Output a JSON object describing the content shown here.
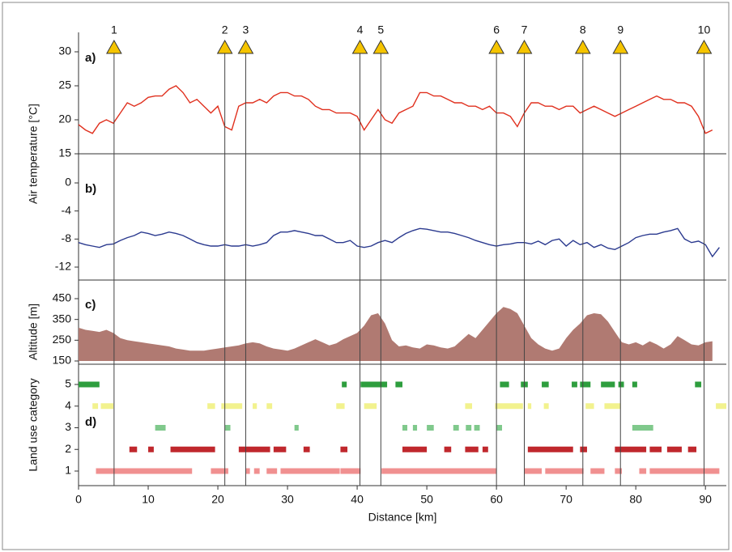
{
  "chart_data": [
    {
      "type": "line",
      "panel_label": "a)",
      "ylabel": "Air temperature [°C]",
      "color": "#e0301e",
      "ylim": [
        15,
        30
      ],
      "yticks": [
        15,
        20,
        25,
        30
      ],
      "markers": {
        "x": [
          5.1,
          21.0,
          24.0,
          40.4,
          43.4,
          60.0,
          64.0,
          72.4,
          77.8,
          89.8
        ],
        "labels": [
          "1",
          "2",
          "3",
          "4",
          "5",
          "6",
          "7",
          "8",
          "9",
          "10"
        ],
        "color": "#f5c400"
      },
      "x": [
        0,
        1,
        2,
        3,
        4,
        5,
        6,
        7,
        8,
        9,
        10,
        11,
        12,
        13,
        14,
        15,
        16,
        17,
        18,
        19,
        20,
        21,
        22,
        23,
        24,
        25,
        26,
        27,
        28,
        29,
        30,
        31,
        32,
        33,
        34,
        35,
        36,
        37,
        38,
        39,
        40,
        41,
        42,
        43,
        44,
        45,
        46,
        47,
        48,
        49,
        50,
        51,
        52,
        53,
        54,
        55,
        56,
        57,
        58,
        59,
        60,
        61,
        62,
        63,
        64,
        65,
        66,
        67,
        68,
        69,
        70,
        71,
        72,
        73,
        74,
        75,
        76,
        77,
        78,
        79,
        80,
        81,
        82,
        83,
        84,
        85,
        86,
        87,
        88,
        89,
        90,
        91
      ],
      "values": [
        19.3,
        18.5,
        18,
        19.5,
        20,
        19.5,
        21,
        22.5,
        22,
        22.5,
        23.3,
        23.5,
        23.5,
        24.5,
        25,
        24,
        22.5,
        23,
        22,
        21,
        22,
        19,
        18.5,
        22,
        22.5,
        22.5,
        23,
        22.5,
        23.5,
        24,
        24,
        23.5,
        23.5,
        23,
        22,
        21.5,
        21.5,
        21,
        21,
        21,
        20.5,
        18.5,
        20,
        21.5,
        20,
        19.5,
        21,
        21.5,
        22,
        24,
        24,
        23.5,
        23.5,
        23,
        22.5,
        22.5,
        22,
        22,
        21.5,
        22,
        21,
        21,
        20.5,
        19,
        21,
        22.5,
        22.5,
        22,
        22,
        21.5,
        22,
        22,
        21,
        21.5,
        22,
        21.5,
        21,
        20.5,
        21,
        21.5,
        22,
        22.5,
        23,
        23.5,
        23,
        23,
        22.5,
        22.5,
        22,
        20.5,
        18,
        18.5
      ]
    },
    {
      "type": "line",
      "panel_label": "b)",
      "color": "#2b3a8f",
      "ylim": [
        -12,
        0
      ],
      "yticks": [
        -12,
        -8,
        -4,
        0
      ],
      "x": [
        0,
        1,
        2,
        3,
        4,
        5,
        6,
        7,
        8,
        9,
        10,
        11,
        12,
        13,
        14,
        15,
        16,
        17,
        18,
        19,
        20,
        21,
        22,
        23,
        24,
        25,
        26,
        27,
        28,
        29,
        30,
        31,
        32,
        33,
        34,
        35,
        36,
        37,
        38,
        39,
        40,
        41,
        42,
        43,
        44,
        45,
        46,
        47,
        48,
        49,
        50,
        51,
        52,
        53,
        54,
        55,
        56,
        57,
        58,
        59,
        60,
        61,
        62,
        63,
        64,
        65,
        66,
        67,
        68,
        69,
        70,
        71,
        72,
        73,
        74,
        75,
        76,
        77,
        78,
        79,
        80,
        81,
        82,
        83,
        84,
        85,
        86,
        87,
        88,
        89,
        90,
        91,
        92
      ],
      "values": [
        -8.5,
        -8.8,
        -9,
        -9.2,
        -8.8,
        -8.7,
        -8.2,
        -7.8,
        -7.5,
        -7,
        -7.2,
        -7.5,
        -7.3,
        -7,
        -7.2,
        -7.5,
        -8,
        -8.5,
        -8.8,
        -9,
        -9,
        -8.8,
        -9,
        -9,
        -8.8,
        -9,
        -8.8,
        -8.5,
        -7.5,
        -7,
        -7,
        -6.8,
        -7,
        -7.2,
        -7.5,
        -7.5,
        -8,
        -8.5,
        -8.5,
        -8.2,
        -9,
        -9.2,
        -9,
        -8.5,
        -8.2,
        -8.5,
        -7.8,
        -7.2,
        -6.8,
        -6.5,
        -6.6,
        -6.8,
        -7,
        -7,
        -7.2,
        -7.5,
        -7.8,
        -8.2,
        -8.5,
        -8.8,
        -9,
        -8.8,
        -8.7,
        -8.5,
        -8.5,
        -8.7,
        -8.3,
        -8.8,
        -8.2,
        -8,
        -9,
        -8.2,
        -8.8,
        -8.5,
        -9.2,
        -8.8,
        -9.3,
        -9.5,
        -9,
        -8.5,
        -7.8,
        -7.5,
        -7.3,
        -7.3,
        -7,
        -6.8,
        -6.5,
        -8,
        -8.5,
        -8.3,
        -8.8,
        -10.5,
        -9.2
      ]
    },
    {
      "type": "area",
      "panel_label": "c)",
      "ylabel": "Altitude [m]",
      "color": "#b07a72",
      "ylim": [
        150,
        450
      ],
      "yticks": [
        150,
        250,
        350,
        450
      ],
      "x": [
        0,
        1,
        2,
        3,
        4,
        5,
        6,
        7,
        8,
        9,
        10,
        11,
        12,
        13,
        14,
        15,
        16,
        17,
        18,
        19,
        20,
        21,
        22,
        23,
        24,
        25,
        26,
        27,
        28,
        29,
        30,
        31,
        32,
        33,
        34,
        35,
        36,
        37,
        38,
        39,
        40,
        41,
        42,
        43,
        44,
        45,
        46,
        47,
        48,
        49,
        50,
        51,
        52,
        53,
        54,
        55,
        56,
        57,
        58,
        59,
        60,
        61,
        62,
        63,
        64,
        65,
        66,
        67,
        68,
        69,
        70,
        71,
        72,
        73,
        74,
        75,
        76,
        77,
        78,
        79,
        80,
        81,
        82,
        83,
        84,
        85,
        86,
        87,
        88,
        89,
        90,
        91
      ],
      "values": [
        310,
        300,
        295,
        290,
        300,
        285,
        260,
        250,
        245,
        240,
        235,
        230,
        225,
        220,
        210,
        205,
        200,
        200,
        200,
        205,
        210,
        215,
        220,
        225,
        235,
        240,
        235,
        220,
        210,
        205,
        200,
        210,
        225,
        240,
        255,
        240,
        225,
        235,
        255,
        270,
        285,
        320,
        370,
        380,
        330,
        250,
        220,
        225,
        215,
        210,
        230,
        225,
        215,
        210,
        220,
        250,
        280,
        260,
        300,
        340,
        380,
        410,
        400,
        380,
        320,
        260,
        230,
        210,
        200,
        210,
        260,
        300,
        330,
        370,
        380,
        375,
        340,
        290,
        240,
        230,
        240,
        225,
        245,
        230,
        210,
        230,
        270,
        250,
        230,
        225,
        240,
        245
      ]
    },
    {
      "type": "segments",
      "panel_label": "d)",
      "ylabel": "Land use category",
      "xlabel": "Distance [km]",
      "ylim": [
        1,
        5
      ],
      "yticks": [
        1,
        2,
        3,
        4,
        5
      ],
      "xlim": [
        0,
        93
      ],
      "xticks": [
        0,
        10,
        20,
        30,
        40,
        50,
        60,
        70,
        80,
        90
      ],
      "series": [
        {
          "value": 5,
          "color": "#2e9e3e",
          "segments": [
            [
              0,
              3
            ],
            [
              37.8,
              38.5
            ],
            [
              40.5,
              44.3
            ],
            [
              45.5,
              46.5
            ],
            [
              60.5,
              61.8
            ],
            [
              63.5,
              64.5
            ],
            [
              66.5,
              67.5
            ],
            [
              70.8,
              71.6
            ],
            [
              72,
              73.5
            ],
            [
              75,
              77
            ],
            [
              77.5,
              78.3
            ],
            [
              79.5,
              80.2
            ],
            [
              88.5,
              89.4
            ]
          ]
        },
        {
          "value": 4,
          "color": "#f2f28e",
          "segments": [
            [
              2,
              2.8
            ],
            [
              3.2,
              5
            ],
            [
              18.5,
              19.6
            ],
            [
              20.5,
              23.5
            ],
            [
              25,
              25.6
            ],
            [
              27,
              27.8
            ],
            [
              37,
              38.2
            ],
            [
              41,
              42.8
            ],
            [
              55.5,
              56.5
            ],
            [
              59.8,
              63.8
            ],
            [
              64.5,
              65
            ],
            [
              66.8,
              67.5
            ],
            [
              72.8,
              74
            ],
            [
              75.5,
              77.8
            ],
            [
              91.5,
              93
            ]
          ]
        },
        {
          "value": 3,
          "color": "#80c98c",
          "segments": [
            [
              11,
              12.5
            ],
            [
              21,
              21.8
            ],
            [
              31,
              31.6
            ],
            [
              46.5,
              47.2
            ],
            [
              48,
              48.6
            ],
            [
              50,
              51
            ],
            [
              53.8,
              54.6
            ],
            [
              55.6,
              56.4
            ],
            [
              56.8,
              57.6
            ],
            [
              60,
              60.8
            ],
            [
              79.5,
              82.5
            ]
          ]
        },
        {
          "value": 2,
          "color": "#c0282d",
          "segments": [
            [
              7.3,
              8.4
            ],
            [
              10,
              10.8
            ],
            [
              13.2,
              19.6
            ],
            [
              23,
              27.5
            ],
            [
              28,
              29.8
            ],
            [
              32.3,
              33.2
            ],
            [
              37.6,
              38.6
            ],
            [
              46.5,
              50
            ],
            [
              52.5,
              53.5
            ],
            [
              55.5,
              57.4
            ],
            [
              58,
              58.8
            ],
            [
              64.5,
              71
            ],
            [
              72,
              73
            ],
            [
              77,
              81.5
            ],
            [
              82,
              83.7
            ],
            [
              84.5,
              86.6
            ],
            [
              87.5,
              88.7
            ]
          ]
        },
        {
          "value": 1,
          "color": "#f09090",
          "segments": [
            [
              2.5,
              16.3
            ],
            [
              19,
              21.5
            ],
            [
              24,
              24.6
            ],
            [
              25.2,
              26
            ],
            [
              27,
              28.5
            ],
            [
              29,
              37.5
            ],
            [
              37.6,
              40.5
            ],
            [
              43.5,
              60
            ],
            [
              64,
              66.5
            ],
            [
              67,
              72.5
            ],
            [
              73.5,
              75.5
            ],
            [
              77,
              78
            ],
            [
              80.5,
              81.5
            ],
            [
              82,
              92
            ]
          ]
        }
      ]
    }
  ]
}
